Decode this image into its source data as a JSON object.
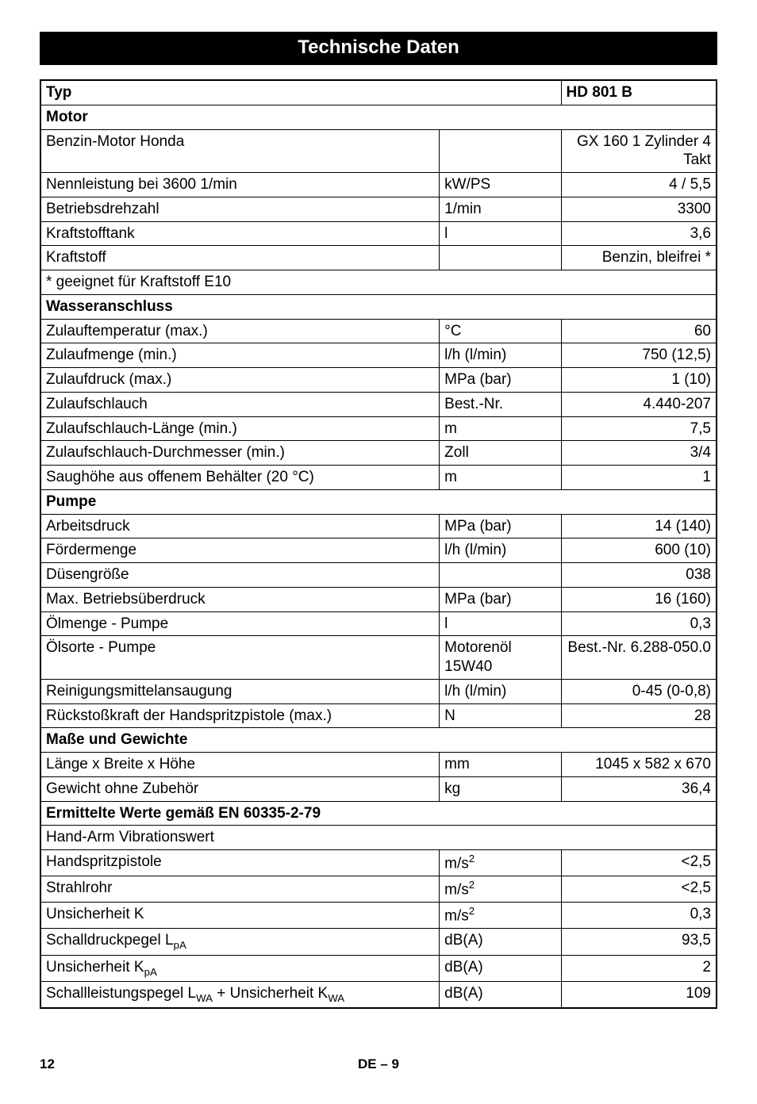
{
  "title": "Technische Daten",
  "columns": {
    "type_label": "Typ",
    "model": "HD 801 B"
  },
  "layout": {
    "col1_pct": 59,
    "col2_pct": 18,
    "col3_pct": 23
  },
  "sections": [
    {
      "heading": "Motor",
      "rows": [
        {
          "p": "Benzin-Motor Honda",
          "u": "",
          "v": "GX 160 1 Zylinder 4 Takt"
        },
        {
          "p": "Nennleistung bei 3600 1/min",
          "u": "kW/PS",
          "v": "4 / 5,5"
        },
        {
          "p": "Betriebsdrehzahl",
          "u": "1/min",
          "v": "3300"
        },
        {
          "p": "Kraftstofftank",
          "u": "l",
          "v": "3,6"
        },
        {
          "p": "Kraftstoff",
          "u": "",
          "v": "Benzin, bleifrei *"
        },
        {
          "p": "* geeignet für Kraftstoff E10",
          "full": true
        }
      ]
    },
    {
      "heading": "Wasseranschluss",
      "rows": [
        {
          "p": "Zulauftemperatur (max.)",
          "u": "°C",
          "v": "60"
        },
        {
          "p": "Zulaufmenge (min.)",
          "u": "l/h (l/min)",
          "v": "750 (12,5)"
        },
        {
          "p": "Zulaufdruck (max.)",
          "u": "MPa (bar)",
          "v": "1 (10)"
        },
        {
          "p": "Zulaufschlauch",
          "u": "Best.-Nr.",
          "v": "4.440-207"
        },
        {
          "p": "Zulaufschlauch-Länge (min.)",
          "u": "m",
          "v": "7,5"
        },
        {
          "p": "Zulaufschlauch-Durchmesser (min.)",
          "u": "Zoll",
          "v": "3/4"
        },
        {
          "p": "Saughöhe aus offenem Behälter (20 °C)",
          "u": "m",
          "v": "1"
        }
      ]
    },
    {
      "heading": "Pumpe",
      "rows": [
        {
          "p": "Arbeitsdruck",
          "u": "MPa (bar)",
          "v": "14 (140)"
        },
        {
          "p": "Fördermenge",
          "u": "l/h (l/min)",
          "v": "600 (10)"
        },
        {
          "p": "Düsengröße",
          "u": "",
          "v": "038"
        },
        {
          "p": "Max. Betriebsüberdruck",
          "u": "MPa (bar)",
          "v": "16 (160)"
        },
        {
          "p": "Ölmenge - Pumpe",
          "u": "l",
          "v": "0,3"
        },
        {
          "p": "Ölsorte - Pumpe",
          "u": "Motorenöl 15W40",
          "v": "Best.-Nr. 6.288-050.0"
        },
        {
          "p": "Reinigungsmittelansaugung",
          "u": "l/h (l/min)",
          "v": "0-45 (0-0,8)"
        },
        {
          "p": "Rückstoßkraft der Handspritzpistole (max.)",
          "u": "N",
          "v": "28"
        }
      ]
    },
    {
      "heading": "Maße und Gewichte",
      "rows": [
        {
          "p": "Länge x Breite x Höhe",
          "u": "mm",
          "v": "1045 x 582 x 670"
        },
        {
          "p": "Gewicht ohne Zubehör",
          "u": "kg",
          "v": "36,4"
        }
      ]
    },
    {
      "heading": "Ermittelte Werte gemäß EN 60335-2-79",
      "rows": [
        {
          "p": "Hand-Arm Vibrationswert",
          "full": true
        },
        {
          "p": "Handspritzpistole",
          "u": "m/s²",
          "v": "<2,5",
          "u_html": "m/s<sup>2</sup>"
        },
        {
          "p": "Strahlrohr",
          "u": "m/s²",
          "v": "<2,5",
          "u_html": "m/s<sup>2</sup>"
        },
        {
          "p": "Unsicherheit K",
          "u": "m/s²",
          "v": "0,3",
          "u_html": "m/s<sup>2</sup>"
        },
        {
          "p": "Schalldruckpegel LpA",
          "u": "dB(A)",
          "v": "93,5",
          "p_html": "Schalldruckpegel L<sub>pA</sub>"
        },
        {
          "p": "Unsicherheit KpA",
          "u": "dB(A)",
          "v": "2",
          "p_html": "Unsicherheit K<sub>pA</sub>"
        },
        {
          "p": "Schallleistungspegel LWA + Unsicherheit KWA",
          "u": "dB(A)",
          "v": "109",
          "p_html": "Schallleistungspegel L<sub>WA</sub> + Unsicherheit K<sub>WA</sub>"
        }
      ]
    }
  ],
  "footer": {
    "page": "12",
    "center": "DE – 9"
  }
}
